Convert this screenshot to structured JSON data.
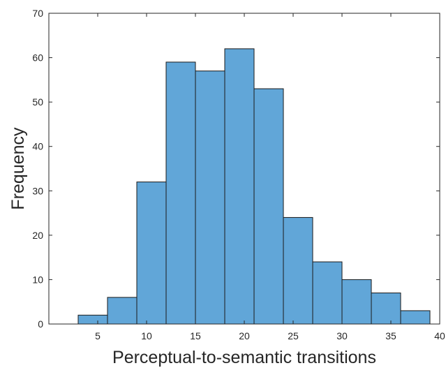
{
  "chart_data": {
    "type": "bar",
    "subtype": "histogram",
    "title": "",
    "xlabel": "Perceptual-to-semantic transitions",
    "ylabel": "Frequency",
    "bin_edges": [
      3,
      6,
      9,
      12,
      15,
      18,
      21,
      24,
      27,
      30,
      33,
      36,
      39
    ],
    "values": [
      2,
      6,
      32,
      59,
      57,
      62,
      53,
      24,
      14,
      10,
      7,
      3
    ],
    "xlim": [
      0,
      40
    ],
    "ylim": [
      0,
      70
    ],
    "x_ticks": [
      5,
      10,
      15,
      20,
      25,
      30,
      35,
      40
    ],
    "y_ticks": [
      0,
      10,
      20,
      30,
      40,
      50,
      60,
      70
    ],
    "grid": false,
    "legend": "none",
    "bar_color": "#61a6d8",
    "edge_color": "#1a1a1a",
    "axis_color": "#262626"
  }
}
